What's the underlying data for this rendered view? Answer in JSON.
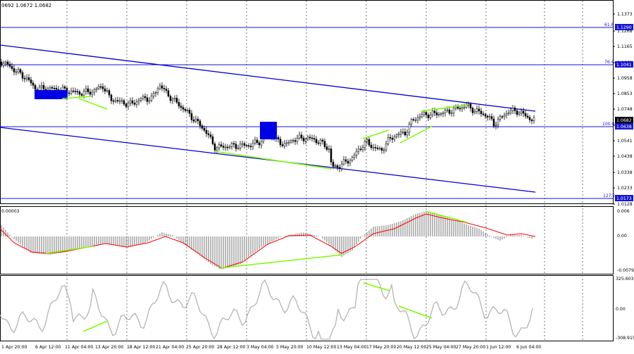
{
  "header": {
    "ohlc_text": "0692 1.0672 1.0682"
  },
  "price_axis": {
    "labels": [
      "1.1373",
      "1.1268",
      "1.1165",
      "1.1062",
      "1.0958",
      "1.0853",
      "1.0748",
      "1.0645",
      "1.0541",
      "1.0438",
      "1.0338",
      "1.0233",
      "1.0128"
    ]
  },
  "fib_levels": [
    {
      "label": "61.8",
      "price_tag": "1.1290"
    },
    {
      "label": "76.4",
      "price_tag": "1.1041"
    },
    {
      "label": "100.0",
      "price_tag": "1.0638"
    },
    {
      "label": "127.2",
      "price_tag": "1.0173"
    }
  ],
  "current_price_tag": "1.0682",
  "macd": {
    "top_label": "0.00003",
    "axis_labels": [
      "0.006",
      "0.00",
      "-0.00791"
    ]
  },
  "cci": {
    "axis_labels": [
      "325.6039",
      "0.00",
      "-308.915"
    ]
  },
  "time_axis": {
    "labels": [
      "1 Apr 20:00",
      "6 Apr 12:00",
      "11 Apr 04:00",
      "13 Apr 20:00",
      "18 Apr 12:00",
      "21 Apr 04:00",
      "25 Apr 20:00",
      "28 Apr 12:00",
      "3 May 04:00",
      "5 May 20:00",
      "10 May 12:00",
      "13 May 04:00",
      "17 May 20:00",
      "20 May 12:00",
      "25 May 04:00",
      "27 May 20:00",
      "1 Jun 12:00",
      "6 Jun 04:00"
    ]
  },
  "colors": {
    "channel": "#0000cd",
    "divergence": "#7cfc00",
    "signal": "#ff0000",
    "histogram": "#a9a9a9",
    "cci_line": "#b4b4b4"
  }
}
